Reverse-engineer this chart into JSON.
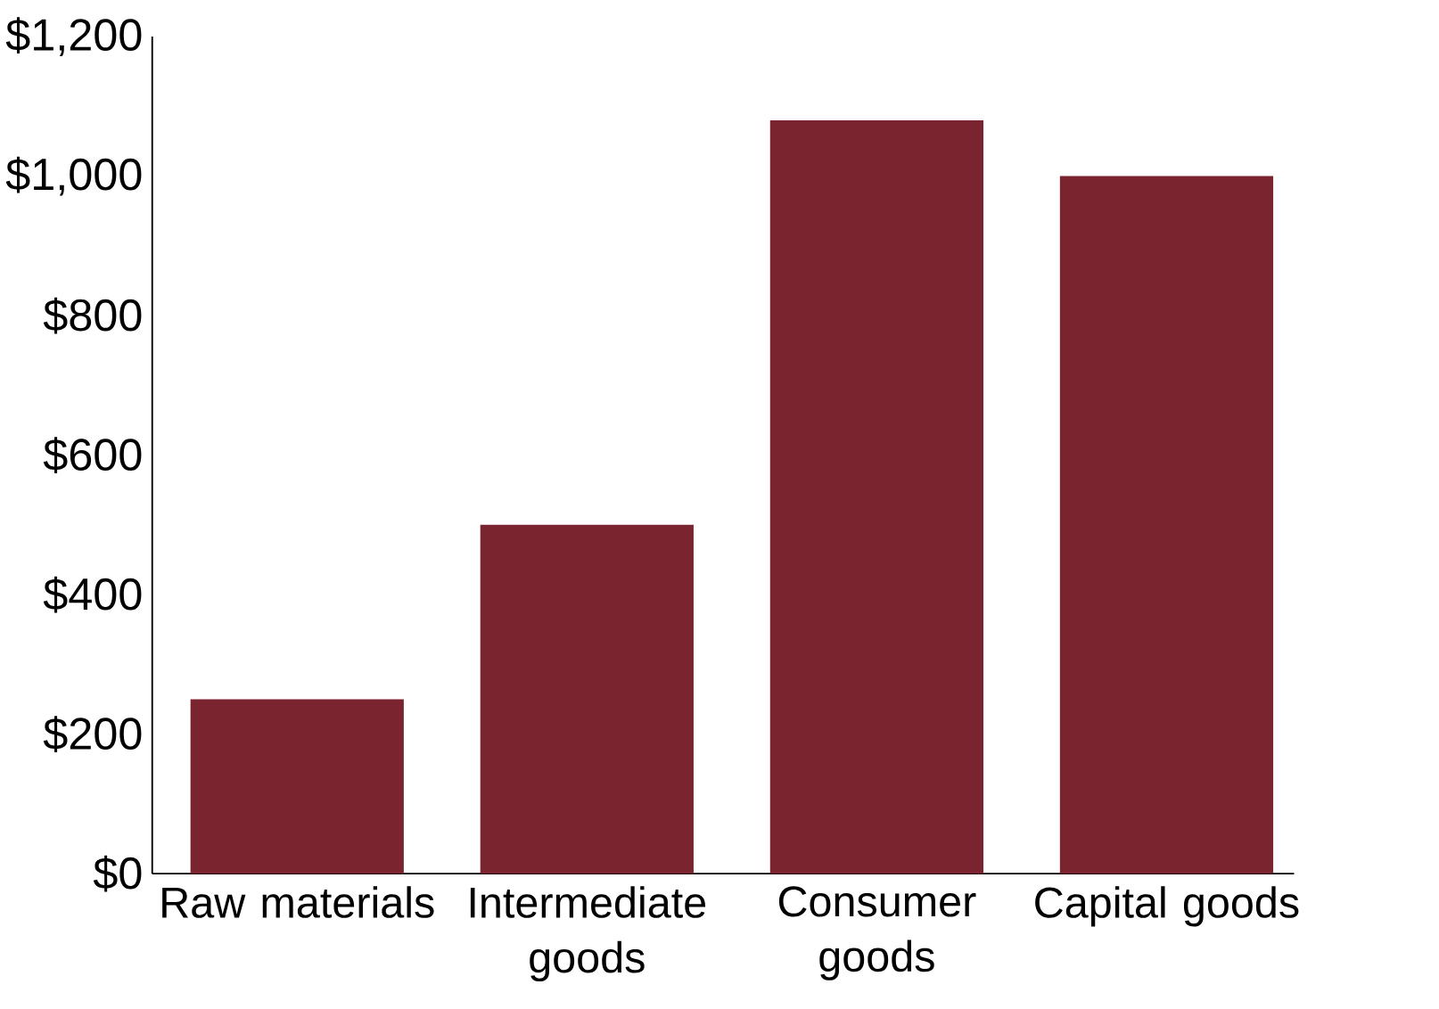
{
  "chart_data": {
    "type": "bar",
    "categories": [
      "Raw materials",
      "Intermediate goods",
      "Consumer goods",
      "Capital goods"
    ],
    "values": [
      250,
      500,
      1080,
      1000
    ],
    "color": "#7a2430",
    "ylim": [
      0,
      1200
    ],
    "yticks": [
      {
        "value": 0,
        "label": "$0"
      },
      {
        "value": 200,
        "label": "$200"
      },
      {
        "value": 400,
        "label": "$400"
      },
      {
        "value": 600,
        "label": "$600"
      },
      {
        "value": 800,
        "label": "$800"
      },
      {
        "value": 1000,
        "label": "$1,000"
      },
      {
        "value": 1200,
        "label": "$1,200"
      }
    ],
    "grid": false
  }
}
